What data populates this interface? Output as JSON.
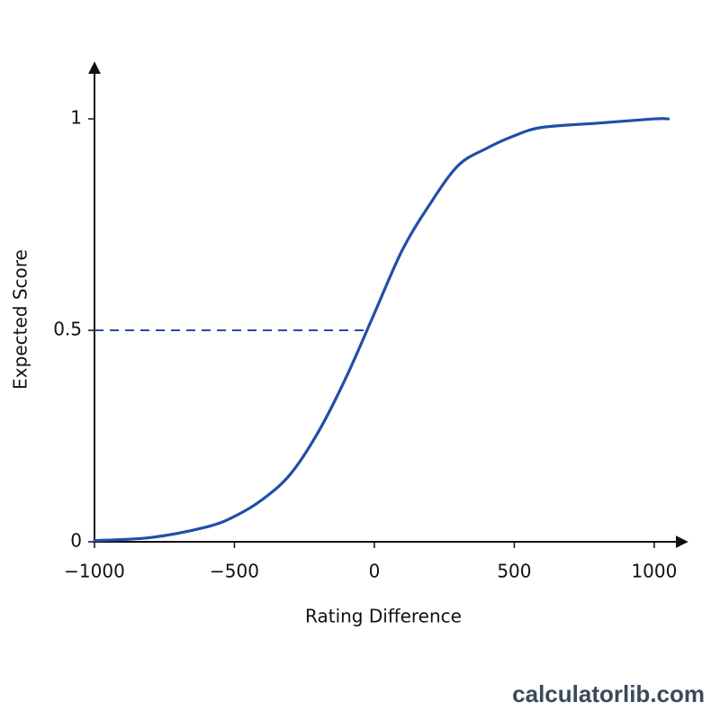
{
  "chart_data": {
    "type": "line",
    "x_label": "Rating Difference",
    "y_label": "Expected Score",
    "x": [
      -1000,
      -800,
      -600,
      -500,
      -400,
      -300,
      -200,
      -100,
      0,
      100,
      200,
      300,
      400,
      500,
      600,
      800,
      1000,
      1050
    ],
    "series": [
      {
        "color": "#1f4fa8",
        "values": [
          0.003,
          0.01,
          0.035,
          0.06,
          0.1,
          0.16,
          0.26,
          0.39,
          0.54,
          0.69,
          0.8,
          0.89,
          0.93,
          0.96,
          0.98,
          0.99,
          1.0,
          1.0
        ]
      }
    ],
    "xlim": [
      -1000,
      1100
    ],
    "ylim": [
      0,
      1.13
    ],
    "xticks": [
      {
        "value": -1000,
        "label": "−1000"
      },
      {
        "value": -500,
        "label": "−500"
      },
      0,
      500,
      1000
    ],
    "yticks": [
      0,
      0.5,
      1
    ],
    "reference_line": {
      "y": 0.5,
      "x": [
        -1000,
        -35
      ],
      "color": "#1f4fa8"
    },
    "watermark": "calculatorlib.com"
  }
}
